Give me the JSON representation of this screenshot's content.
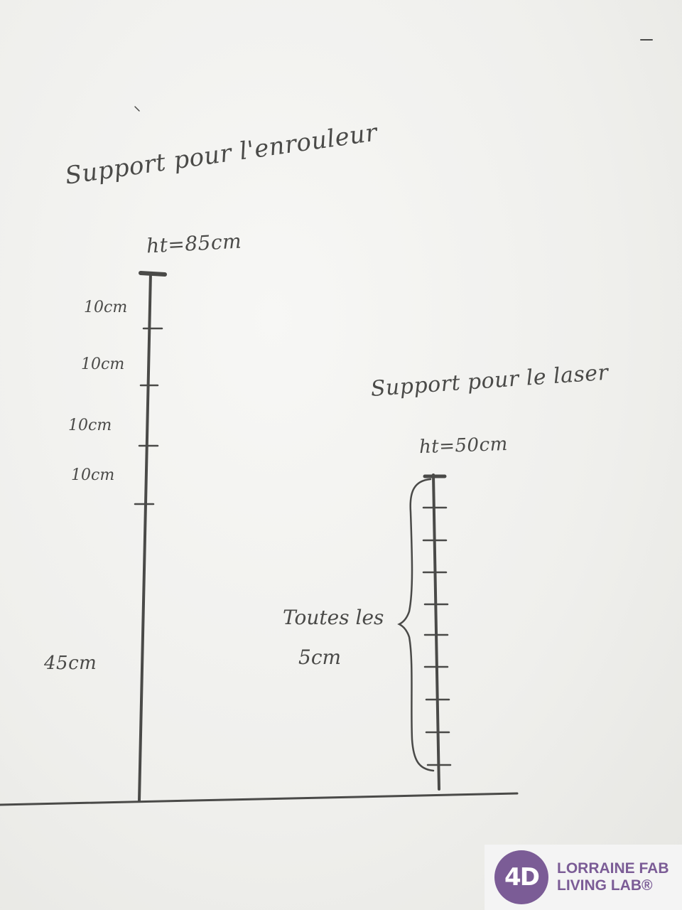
{
  "left_support": {
    "title": "Support pour l'enrouleur",
    "height_label": "ht=85cm",
    "segments": [
      "10cm",
      "10cm",
      "10cm",
      "10cm"
    ],
    "base_label": "45cm"
  },
  "right_support": {
    "title": "Support pour le laser",
    "height_label": "ht=50cm",
    "note_line1": "Toutes les",
    "note_line2": "5cm"
  },
  "logo": {
    "mark": "4D",
    "line1": "LORRAINE FAB",
    "line2": "LIVING LAB®",
    "color": "#7b5c96"
  },
  "colors": {
    "pencil": "#4a4a48",
    "paper": "#f1f1ef"
  }
}
